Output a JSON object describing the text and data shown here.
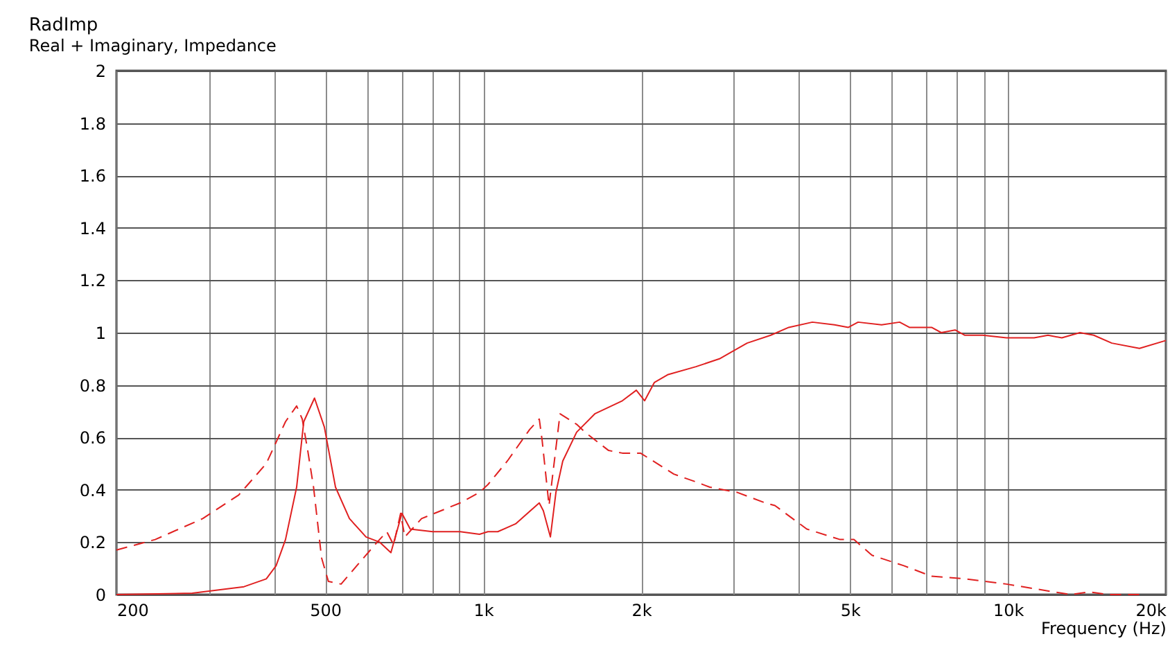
{
  "chart_data": {
    "type": "line",
    "title": "RadImp",
    "subtitle": "Real + Imaginary, Impedance",
    "xlabel": "Frequency  (Hz)",
    "log": "x",
    "grid": true,
    "marker": "none",
    "xlim": [
      200,
      20000
    ],
    "ylim": [
      0,
      2
    ],
    "xticks": [
      200,
      {
        "value": 300,
        "label": null
      },
      {
        "value": 400,
        "label": null
      },
      500,
      {
        "value": 600,
        "label": null
      },
      {
        "value": 700,
        "label": null
      },
      {
        "value": 800,
        "label": null
      },
      {
        "value": 900,
        "label": null
      },
      {
        "value": 1000,
        "label": "1k"
      },
      {
        "value": 2000,
        "label": "2k"
      },
      {
        "value": 3000,
        "label": null
      },
      {
        "value": 4000,
        "label": null
      },
      {
        "value": 5000,
        "label": "5k"
      },
      {
        "value": 6000,
        "label": null
      },
      {
        "value": 7000,
        "label": null
      },
      {
        "value": 8000,
        "label": null
      },
      {
        "value": 9000,
        "label": null
      },
      {
        "value": 10000,
        "label": "10k"
      },
      {
        "value": 20000,
        "label": "20k"
      }
    ],
    "yticks": [
      0,
      0.2,
      0.4,
      0.6,
      0.8,
      1,
      1.2,
      1.4,
      1.6,
      1.8,
      2
    ],
    "series": [
      {
        "color": "#e02020",
        "line_style": "solid",
        "x": [
          200,
          279,
          350,
          386,
          403,
          420,
          441,
          455,
          477,
          498,
          523,
          556,
          598,
          635,
          667,
          700,
          726,
          801,
          904,
          984,
          1021,
          1066,
          1153,
          1279,
          1302,
          1343,
          1376,
          1418,
          1507,
          1632,
          1842,
          1958,
          2031,
          2120,
          2252,
          2544,
          2820,
          3184,
          3532,
          3823,
          4240,
          4674,
          4966,
          5182,
          5745,
          6219,
          6490,
          7154,
          7464,
          7933,
          8280,
          8961,
          9936,
          10304,
          11220,
          11924,
          12672,
          13717,
          14577,
          15776,
          17815,
          20000
        ],
        "values": [
          0,
          0.005,
          0.03,
          0.06,
          0.11,
          0.21,
          0.41,
          0.66,
          0.75,
          0.64,
          0.41,
          0.29,
          0.22,
          0.2,
          0.16,
          0.31,
          0.25,
          0.24,
          0.24,
          0.23,
          0.24,
          0.24,
          0.27,
          0.35,
          0.32,
          0.22,
          0.39,
          0.51,
          0.62,
          0.69,
          0.74,
          0.78,
          0.74,
          0.81,
          0.84,
          0.87,
          0.9,
          0.96,
          0.99,
          1.02,
          1.04,
          1.03,
          1.02,
          1.04,
          1.03,
          1.04,
          1.02,
          1.02,
          1.0,
          1.01,
          0.99,
          0.99,
          0.98,
          0.98,
          0.98,
          0.99,
          0.98,
          1.0,
          0.99,
          0.96,
          0.94,
          0.97
        ]
      },
      {
        "color": "#e02020",
        "line_style": "dashed",
        "x": [
          200,
          237,
          292,
          342,
          386,
          420,
          441,
          452,
          463,
          475,
          492,
          507,
          536,
          580,
          628,
          655,
          675,
          696,
          709,
          763,
          904,
          984,
          1021,
          1112,
          1226,
          1279,
          1295,
          1335,
          1401,
          1507,
          1563,
          1734,
          1842,
          1994,
          2107,
          2308,
          2544,
          2703,
          3051,
          3447,
          3597,
          4138,
          4789,
          5088,
          5507,
          6335,
          7154,
          8280,
          9936,
          11427,
          13145,
          14314,
          15488,
          17815
        ],
        "values": [
          0.17,
          0.21,
          0.29,
          0.38,
          0.5,
          0.66,
          0.72,
          0.67,
          0.55,
          0.41,
          0.14,
          0.05,
          0.04,
          0.12,
          0.2,
          0.24,
          0.19,
          0.31,
          0.22,
          0.29,
          0.35,
          0.39,
          0.42,
          0.51,
          0.63,
          0.67,
          0.59,
          0.34,
          0.69,
          0.65,
          0.62,
          0.55,
          0.54,
          0.54,
          0.51,
          0.46,
          0.43,
          0.41,
          0.39,
          0.35,
          0.34,
          0.25,
          0.21,
          0.21,
          0.15,
          0.11,
          0.07,
          0.06,
          0.04,
          0.02,
          0,
          0.01,
          0,
          0
        ]
      }
    ]
  }
}
